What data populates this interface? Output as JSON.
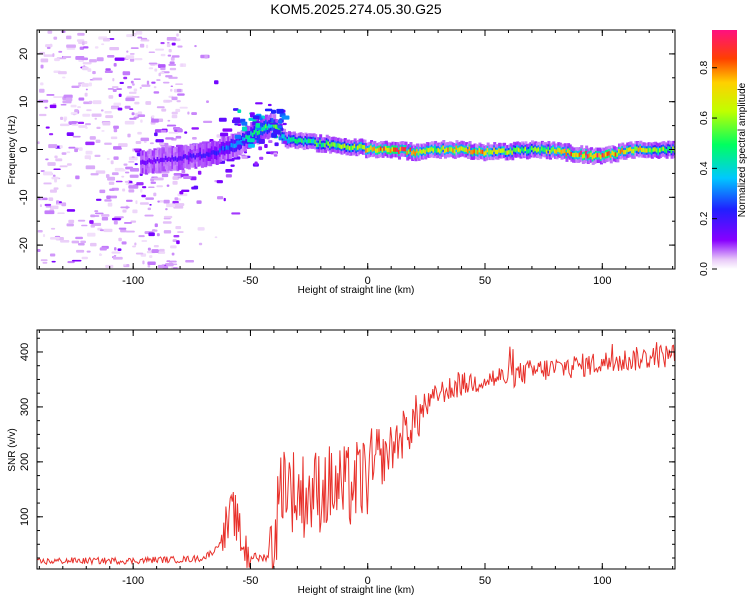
{
  "chart_data": [
    {
      "type": "heatmap",
      "title": "KOM5.2025.274.05.30.G25",
      "xlabel": "Height of straight line (km)",
      "ylabel": "Frequency (Hz)",
      "xlim": [
        -141,
        131
      ],
      "ylim": [
        -25,
        25
      ],
      "xticks": [
        "-100",
        "-50",
        "0",
        "50",
        "100"
      ],
      "xtick_values": [
        -100,
        -50,
        0,
        50,
        100
      ],
      "yticks": [
        "20",
        "10",
        "0",
        "-10",
        "-20"
      ],
      "ytick_values": [
        20,
        10,
        0,
        -10,
        -20
      ],
      "colorbar": {
        "label": "Normalized spectral amplitude",
        "range": [
          0,
          0.95
        ],
        "ticks": [
          "0.0",
          "0.2",
          "0.4",
          "0.6",
          "0.8"
        ],
        "tick_values": [
          0.0,
          0.2,
          0.4,
          0.6,
          0.8
        ]
      },
      "ridge": {
        "description_points_x": [
          -95,
          -85,
          -75,
          -65,
          -55,
          -45,
          -40,
          -35,
          -25,
          -15,
          -5,
          0,
          10,
          20,
          30,
          40,
          50,
          60,
          70,
          80,
          90,
          100,
          110,
          120,
          131
        ],
        "frequency_hz": [
          -2.5,
          -2,
          -1.5,
          -0.5,
          1.5,
          4.5,
          5,
          2,
          1.5,
          1,
          0.5,
          0,
          0,
          -0.5,
          0,
          0,
          -0.5,
          -0.3,
          0,
          -0.3,
          -1,
          -1.5,
          -0.3,
          0,
          0
        ],
        "amplitude": [
          0.15,
          0.18,
          0.2,
          0.25,
          0.4,
          0.6,
          0.55,
          0.5,
          0.55,
          0.6,
          0.65,
          0.85,
          0.95,
          0.8,
          0.7,
          0.85,
          0.8,
          0.7,
          0.6,
          0.75,
          0.9,
          0.95,
          0.8,
          0.7,
          0.6
        ]
      }
    },
    {
      "type": "line",
      "xlabel": "Height of straight line (km)",
      "ylabel": "SNR (v/v)",
      "xlim": [
        -141,
        131
      ],
      "ylim": [
        5,
        440
      ],
      "xticks": [
        "-100",
        "-50",
        "0",
        "50",
        "100"
      ],
      "xtick_values": [
        -100,
        -50,
        0,
        50,
        100
      ],
      "yticks": [
        "400",
        "300",
        "200",
        "100"
      ],
      "ytick_values": [
        400,
        300,
        200,
        100
      ],
      "color": "#e8312b",
      "series": [
        {
          "name": "SNR",
          "x": [
            -141,
            -130,
            -120,
            -110,
            -100,
            -90,
            -80,
            -70,
            -65,
            -60,
            -57,
            -55,
            -52,
            -50,
            -47,
            -45,
            -42,
            -40,
            -38,
            -36,
            -34,
            -32,
            -30,
            -25,
            -20,
            -15,
            -10,
            -5,
            0,
            5,
            10,
            15,
            20,
            25,
            30,
            40,
            50,
            60,
            70,
            80,
            90,
            100,
            110,
            120,
            131
          ],
          "y": [
            18,
            20,
            20,
            20,
            20,
            22,
            22,
            25,
            40,
            80,
            110,
            70,
            40,
            30,
            25,
            25,
            30,
            60,
            120,
            180,
            160,
            150,
            140,
            140,
            150,
            155,
            150,
            160,
            175,
            195,
            225,
            250,
            275,
            300,
            325,
            340,
            350,
            355,
            365,
            370,
            375,
            380,
            385,
            390,
            395
          ]
        }
      ]
    }
  ]
}
